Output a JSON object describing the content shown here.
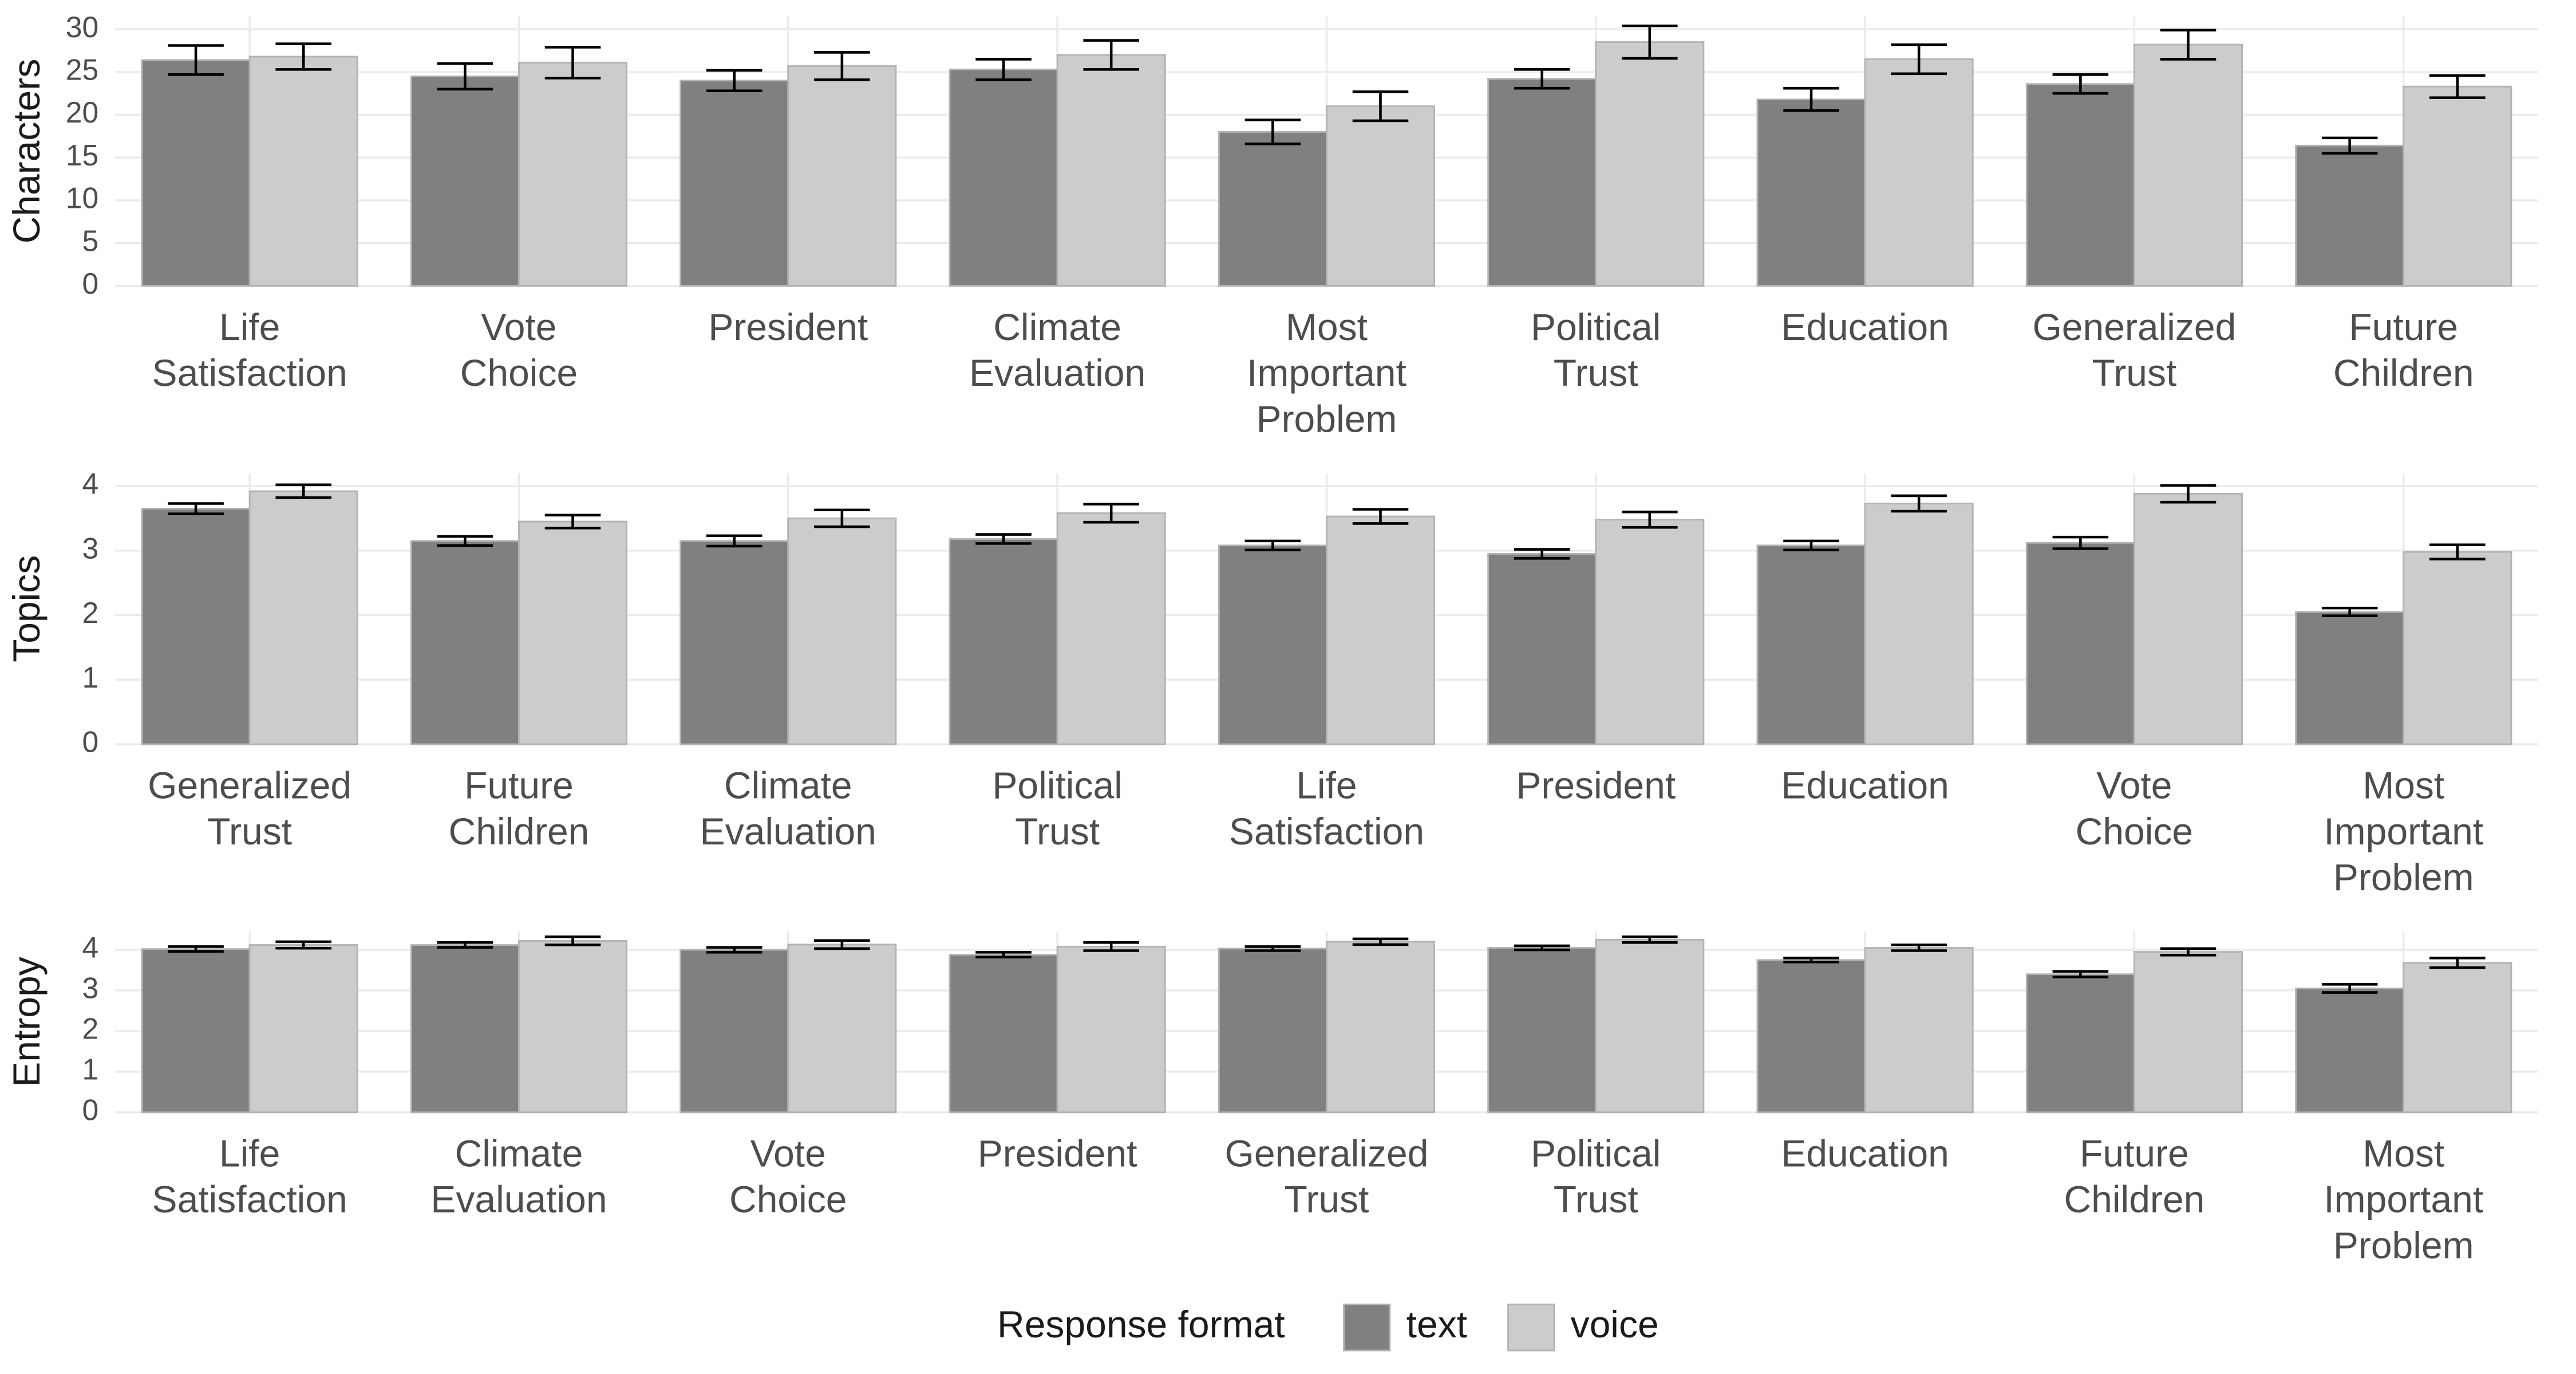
{
  "chart_data": [
    {
      "type": "bar",
      "y_label": "Characters",
      "categories": [
        "Life Satisfaction",
        "Vote Choice",
        "President",
        "Climate Evaluation",
        "Most Important Problem",
        "Political Trust",
        "Education",
        "Generalized Trust",
        "Future Children"
      ],
      "series": [
        {
          "name": "text",
          "color": "#808080",
          "values": [
            26.4,
            24.5,
            24.0,
            25.3,
            18.0,
            24.2,
            21.8,
            23.6,
            16.4
          ],
          "errors": [
            1.7,
            1.5,
            1.2,
            1.2,
            1.4,
            1.1,
            1.3,
            1.1,
            0.9
          ]
        },
        {
          "name": "voice",
          "color": "#cccccc",
          "values": [
            26.8,
            26.1,
            25.7,
            27.0,
            21.0,
            28.5,
            26.5,
            28.2,
            23.3
          ],
          "errors": [
            1.5,
            1.8,
            1.6,
            1.7,
            1.7,
            1.9,
            1.7,
            1.7,
            1.3
          ]
        }
      ],
      "ylim": [
        0,
        31.5
      ],
      "yticks": [
        0,
        5,
        10,
        15,
        20,
        25,
        30
      ],
      "grid": true
    },
    {
      "type": "bar",
      "y_label": "Topics",
      "categories": [
        "Generalized Trust",
        "Future Children",
        "Climate Evaluation",
        "Political Trust",
        "Life Satisfaction",
        "President",
        "Education",
        "Vote Choice",
        "Most Important Problem"
      ],
      "series": [
        {
          "name": "text",
          "color": "#808080",
          "values": [
            3.65,
            3.15,
            3.15,
            3.18,
            3.08,
            2.95,
            3.08,
            3.12,
            2.05
          ],
          "errors": [
            0.08,
            0.07,
            0.08,
            0.07,
            0.07,
            0.07,
            0.07,
            0.09,
            0.06
          ]
        },
        {
          "name": "voice",
          "color": "#cccccc",
          "values": [
            3.92,
            3.45,
            3.5,
            3.58,
            3.53,
            3.48,
            3.73,
            3.88,
            2.98
          ],
          "errors": [
            0.1,
            0.1,
            0.13,
            0.14,
            0.11,
            0.12,
            0.12,
            0.13,
            0.11
          ]
        }
      ],
      "ylim": [
        0,
        4.2
      ],
      "yticks": [
        0,
        1,
        2,
        3,
        4
      ],
      "grid": true
    },
    {
      "type": "bar",
      "y_label": "Entropy",
      "categories": [
        "Life Satisfaction",
        "Climate Evaluation",
        "Vote Choice",
        "President",
        "Generalized Trust",
        "Political Trust",
        "Education",
        "Future Children",
        "Most Important Problem"
      ],
      "series": [
        {
          "name": "text",
          "color": "#808080",
          "values": [
            4.02,
            4.12,
            4.0,
            3.88,
            4.03,
            4.05,
            3.75,
            3.4,
            3.05
          ],
          "errors": [
            0.06,
            0.06,
            0.06,
            0.06,
            0.05,
            0.05,
            0.05,
            0.07,
            0.1
          ]
        },
        {
          "name": "voice",
          "color": "#cccccc",
          "values": [
            4.12,
            4.22,
            4.13,
            4.08,
            4.2,
            4.25,
            4.05,
            3.95,
            3.68
          ],
          "errors": [
            0.08,
            0.1,
            0.1,
            0.1,
            0.07,
            0.07,
            0.07,
            0.08,
            0.12
          ]
        }
      ],
      "ylim": [
        0,
        4.45
      ],
      "yticks": [
        0,
        1,
        2,
        3,
        4
      ],
      "grid": true,
      "legend_title": "Response format",
      "legend_position": "bottom"
    }
  ]
}
